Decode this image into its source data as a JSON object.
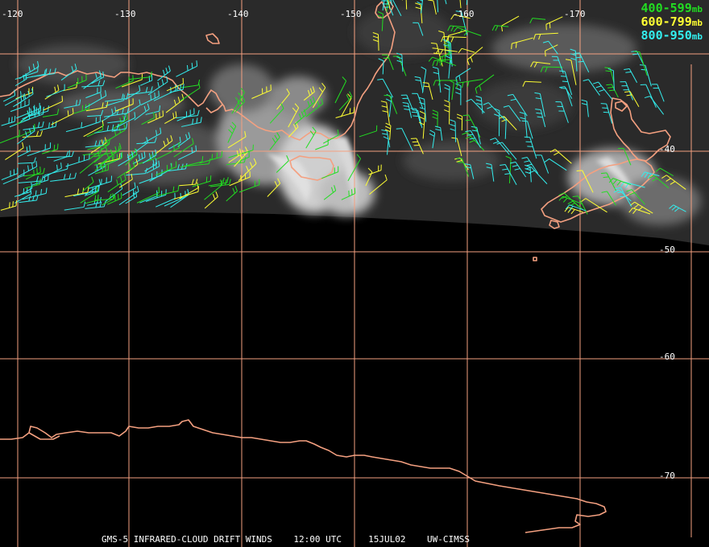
{
  "lon_labels": [
    "-120",
    "-130",
    "-140",
    "-150",
    "-160",
    "-170"
  ],
  "lat_labels": [
    "-40",
    "-50",
    "-60",
    "-70"
  ],
  "legend": [
    {
      "range": "400-599",
      "unit": "mb",
      "color": "#22dd22"
    },
    {
      "range": "600-799",
      "unit": "mb",
      "color": "#ffff33"
    },
    {
      "range": "800-950",
      "unit": "mb",
      "color": "#33eeee"
    }
  ],
  "caption": {
    "product": "GMS-5 INFRARED-CLOUD DRIFT WINDS",
    "time": "12:00 UTC",
    "date": "15JUL02",
    "source": "UW-CIMSS"
  },
  "colors": {
    "grid": "#f4a080",
    "coast": "#f4a080",
    "label": "#ffffff",
    "background": "#000000"
  }
}
